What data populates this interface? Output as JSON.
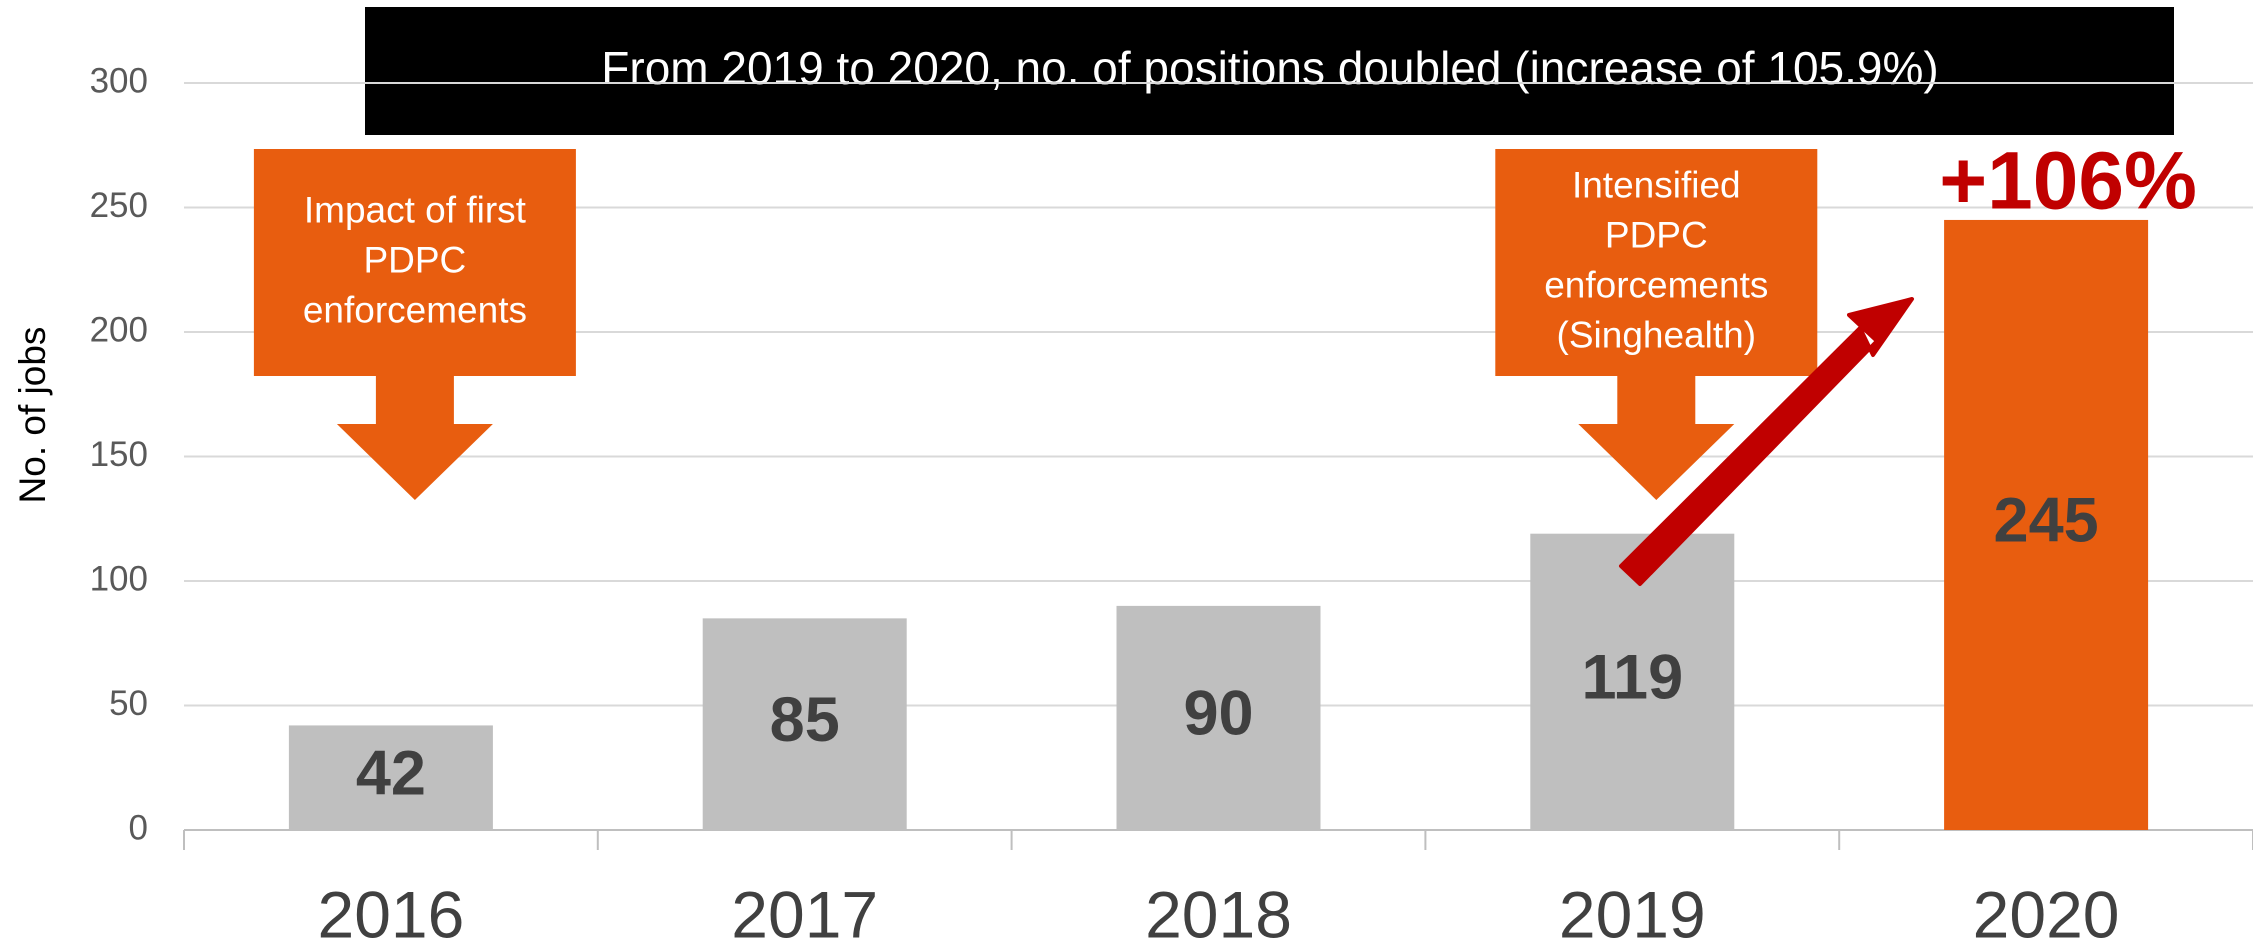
{
  "chart_data": {
    "type": "bar",
    "title": "From 2019 to 2020, no. of positions doubled (increase of 105.9%)",
    "y_label": "No. of jobs",
    "categories": [
      "2016",
      "2017",
      "2018",
      "2019",
      "2020"
    ],
    "values": [
      42,
      85,
      90,
      119,
      245
    ],
    "colors": [
      "#bfbfbf",
      "#bfbfbf",
      "#bfbfbf",
      "#bfbfbf",
      "#e85d0f"
    ],
    "ylim": [
      0,
      300
    ],
    "yticks": [
      0,
      50,
      100,
      150,
      200,
      250,
      300
    ],
    "grid": true,
    "growth_label": "+106%",
    "callouts": [
      {
        "category": "2016",
        "lines": [
          "Impact of first",
          "PDPC",
          "enforcements"
        ]
      },
      {
        "category": "2019",
        "lines": [
          "Intensified",
          "PDPC",
          "enforcements",
          "(Singhealth)"
        ]
      }
    ]
  }
}
